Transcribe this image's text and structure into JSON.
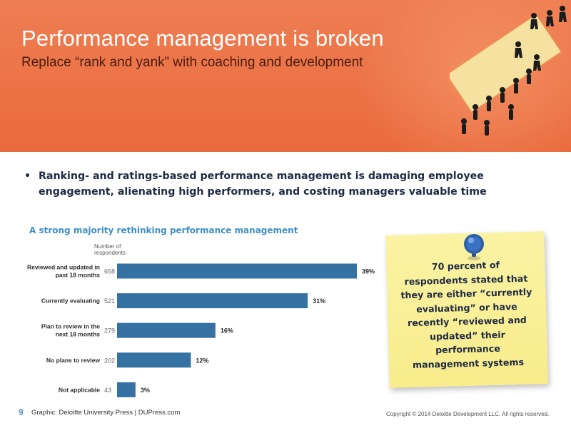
{
  "slide": {
    "title": "Performance management is broken",
    "subtitle": "Replace “rank and yank” with coaching and development",
    "bullet_marker": "•",
    "bullet_line_1": "Ranking- and ratings-based performance management is damaging employee",
    "bullet_line_2": "engagement, alienating high performers, and costing managers valuable time",
    "page_number": "9",
    "source": "Graphic: Deloitte University Press | DUPress.com",
    "copyright": "Copyright © 2014 Deloitte Development LLC. All rights reserved."
  },
  "note": {
    "text": "70 percent of respondents stated that they are either “currently evaluating” or have recently “reviewed and updated” their performance management systems",
    "lines": [
      "70 percent of",
      "respondents stated that",
      "they are either “currently",
      "evaluating” or have",
      "recently “reviewed and",
      "updated” their",
      "performance",
      "management systems"
    ]
  },
  "icons": {
    "pin": "push-pin-icon",
    "illustration": "climbing-people-illustration"
  },
  "colors": {
    "banner": "#ec7347",
    "bar": "#3572a3",
    "chart_title": "#3f8fc4",
    "note": "#f9ee90"
  },
  "chart_data": {
    "type": "bar",
    "orientation": "horizontal",
    "title": "A strong majority rethinking performance management",
    "count_header": "Number of respondents",
    "count_header_lines": [
      "Number of",
      "respondents"
    ],
    "categories": [
      "Reviewed and updated in past 18 months",
      "Currently evaluating",
      "Plan to review in the next 18 months",
      "No plans to review",
      "Not applicable"
    ],
    "category_lines": [
      [
        "Reviewed and updated in",
        "past 18 months"
      ],
      [
        "Currently evaluating"
      ],
      [
        "Plan to review in the",
        "next 18 months"
      ],
      [
        "No plans to review"
      ],
      [
        "Not applicable"
      ]
    ],
    "counts": [
      658,
      521,
      279,
      202,
      43
    ],
    "values": [
      39,
      31,
      16,
      12,
      3
    ],
    "value_labels": [
      "39%",
      "31%",
      "16%",
      "12%",
      "3%"
    ],
    "value_unit": "%",
    "xlim": [
      0,
      39
    ],
    "grid": false,
    "legend": "none"
  }
}
